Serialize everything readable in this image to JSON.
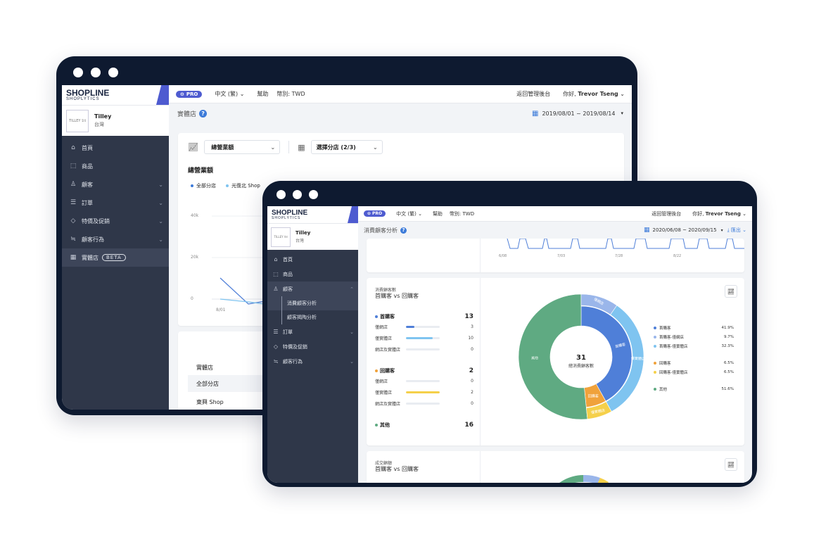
{
  "back_window": {
    "logo": {
      "main": "SHOPLINE",
      "sub": "SHOPLYTICS"
    },
    "store": {
      "name": "Tilley",
      "region": "台灣",
      "logo_text": "TILLEY 𝔗𝔦𝔩"
    },
    "nav": [
      {
        "label": "首頁",
        "icon": "home-icon",
        "glyph": "⌂"
      },
      {
        "label": "商品",
        "icon": "bag-icon",
        "glyph": "⬚"
      },
      {
        "label": "顧客",
        "icon": "user-icon",
        "glyph": "♙",
        "chev": "⌄"
      },
      {
        "label": "訂單",
        "icon": "receipt-icon",
        "glyph": "☰",
        "chev": "⌄"
      },
      {
        "label": "特價及促銷",
        "icon": "tag-icon",
        "glyph": "◇",
        "chev": "⌄"
      },
      {
        "label": "顧客行為",
        "icon": "behavior-icon",
        "glyph": "≒",
        "chev": "⌄"
      },
      {
        "label": "實體店",
        "icon": "store-icon",
        "glyph": "▦",
        "badge": "BETA",
        "active": true
      }
    ],
    "topbar": {
      "pro": "PRO",
      "language": "中文 (繁)",
      "help": "幫助",
      "currency": "幣別: TWD",
      "back_admin": "返回管理後台",
      "greeting": "你好,",
      "user": "Trevor Tseng"
    },
    "page_title": "實體店",
    "date_range": "2019/08/01 ~ 2019/08/14",
    "metric_select": "總營業額",
    "store_select": "選擇分店 (2/3)",
    "chart_title": "總營業額",
    "legend": [
      {
        "label": "全部分店",
        "color": "#3d7bd9"
      },
      {
        "label": "光復北 Shop",
        "color": "#7fc4f0"
      }
    ],
    "y_ticks": [
      "40k",
      "20k",
      "0"
    ],
    "x_ticks": [
      "8/01"
    ],
    "table": {
      "header": "實體店",
      "rows": [
        "全部分店",
        "東興 Shop"
      ]
    }
  },
  "front_window": {
    "logo": {
      "main": "SHOPLINE",
      "sub": "SHOPLYTICS"
    },
    "store": {
      "name": "Tilley",
      "region": "台灣",
      "logo_text": "TILLEY 𝔗𝔦𝔩"
    },
    "nav": [
      {
        "label": "首頁",
        "icon": "home-icon",
        "glyph": "⌂"
      },
      {
        "label": "商品",
        "icon": "bag-icon",
        "glyph": "⬚"
      },
      {
        "label": "顧客",
        "icon": "user-icon",
        "glyph": "♙",
        "chev": "⌃",
        "active": true
      }
    ],
    "sub_nav": [
      {
        "label": "消費顧客分析",
        "active": true
      },
      {
        "label": "顧客揭陶分析"
      }
    ],
    "nav_after": [
      {
        "label": "訂單",
        "icon": "receipt-icon",
        "glyph": "☰",
        "chev": "⌄"
      },
      {
        "label": "特價及促銷",
        "icon": "tag-icon",
        "glyph": "◇"
      },
      {
        "label": "顧客行為",
        "icon": "behavior-icon",
        "glyph": "≒",
        "chev": "⌄"
      }
    ],
    "topbar": {
      "pro": "PRO",
      "language": "中文 (繁)",
      "help": "幫助",
      "currency": "幣別: TWD",
      "back_admin": "返回管理後台",
      "greeting": "你好,",
      "user": "Trevor Tseng"
    },
    "page_title": "消費顧客分析",
    "date_range": "2020/06/08 ~ 2020/09/15",
    "export": "匯出",
    "top_x_ticks": [
      "6/08",
      "7/03",
      "7/28",
      "8/22"
    ],
    "card1": {
      "kicker": "消費顧客數",
      "title": "首購客 vs 回購客",
      "groups": [
        {
          "label": "首購客",
          "color": "#4f7fd8",
          "total": "13",
          "rows": [
            {
              "label": "僅網店",
              "value": "3",
              "fill": 0.25,
              "color": "#4f7fd8"
            },
            {
              "label": "僅實體店",
              "value": "10",
              "fill": 0.8,
              "color": "#7fc4f0"
            },
            {
              "label": "網店及實體店",
              "value": "0",
              "fill": 0,
              "color": "#7fc4f0"
            }
          ]
        },
        {
          "label": "回購客",
          "color": "#f0a23b",
          "total": "2",
          "rows": [
            {
              "label": "僅網店",
              "value": "0",
              "fill": 0,
              "color": "#f0a23b"
            },
            {
              "label": "僅實體店",
              "value": "2",
              "fill": 1.0,
              "color": "#f5d04a"
            },
            {
              "label": "網店及實體店",
              "value": "0",
              "fill": 0,
              "color": "#f5d04a"
            }
          ]
        }
      ],
      "other": {
        "label": "其他",
        "total": "16",
        "color": "#5faa82"
      },
      "center_value": "31",
      "center_label": "總消費顧客數",
      "donut_labels": {
        "other": "其他",
        "first": "首購客",
        "ring_first_store": "僅實體店",
        "ring_first_online": "僅網店",
        "returning": "回購客",
        "ring_returning": "僅實體店"
      },
      "legend": [
        {
          "label": "首購客",
          "pct": "41.9%",
          "color": "#4f7fd8"
        },
        {
          "label": "首購客-僅網店",
          "pct": "9.7%",
          "color": "#9ab6ea"
        },
        {
          "label": "首購客-僅實體店",
          "pct": "32.3%",
          "color": "#7fc4f0"
        },
        {
          "label": "回購客",
          "pct": "6.5%",
          "color": "#f0a23b"
        },
        {
          "label": "回購客-僅實體店",
          "pct": "6.5%",
          "color": "#f5d04a"
        },
        {
          "label": "其他",
          "pct": "51.6%",
          "color": "#5faa82"
        }
      ]
    },
    "card2": {
      "kicker": "成交顧額",
      "title": "首購客 vs 回購客"
    }
  },
  "chart_data": {
    "type": "pie",
    "title": "首購客 vs 回購客",
    "inner_ring": [
      {
        "name": "首購客",
        "value": 13,
        "color": "#4f7fd8"
      },
      {
        "name": "回購客",
        "value": 2,
        "color": "#f0a23b"
      },
      {
        "name": "其他",
        "value": 16,
        "color": "#5faa82"
      }
    ],
    "outer_ring": [
      {
        "name": "首購客-僅網店",
        "value": 3,
        "color": "#9ab6ea"
      },
      {
        "name": "首購客-僅實體店",
        "value": 10,
        "color": "#7fc4f0"
      },
      {
        "name": "回購客-僅實體店",
        "value": 2,
        "color": "#f5d04a"
      }
    ],
    "total": 31
  }
}
